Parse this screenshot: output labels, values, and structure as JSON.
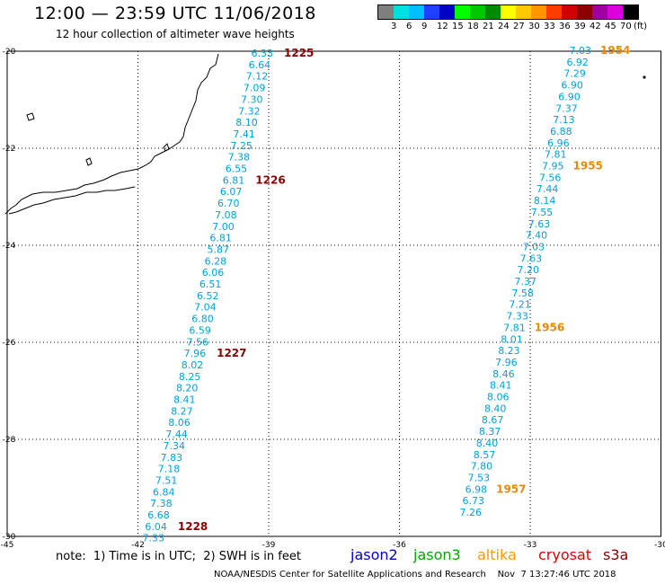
{
  "header": {
    "title": "12:00 — 23:59 UTC 11/06/2018",
    "subtitle": "12 hour collection of altimeter wave heights"
  },
  "legend": {
    "unit": "(ft)",
    "levels": [
      {
        "label": "",
        "color": "#7f7f7f"
      },
      {
        "label": "3",
        "color": "#00e0e0"
      },
      {
        "label": "6",
        "color": "#00bfff"
      },
      {
        "label": "9",
        "color": "#1f3fff"
      },
      {
        "label": "12",
        "color": "#0000c8"
      },
      {
        "label": "15",
        "color": "#00ff00"
      },
      {
        "label": "18",
        "color": "#00c800"
      },
      {
        "label": "21",
        "color": "#008a00"
      },
      {
        "label": "24",
        "color": "#ffff00"
      },
      {
        "label": "27",
        "color": "#ffc800"
      },
      {
        "label": "30",
        "color": "#ff9600"
      },
      {
        "label": "33",
        "color": "#ff3c00"
      },
      {
        "label": "36",
        "color": "#d20000"
      },
      {
        "label": "39",
        "color": "#8c0000"
      },
      {
        "label": "42",
        "color": "#a000a0"
      },
      {
        "label": "45",
        "color": "#dc00dc"
      },
      {
        "label": "70",
        "color": "#000000"
      }
    ]
  },
  "axes": {
    "lon_ticks": [
      "-45",
      "-42",
      "-39",
      "-36",
      "-33",
      "-30"
    ],
    "lat_ticks": [
      "-20",
      "-22",
      "-24",
      "-26",
      "-28",
      "-30"
    ]
  },
  "passes": {
    "west": {
      "color": "#00a0e0",
      "values": [
        "6.33",
        "6.64",
        "7.12",
        "7.09",
        "7.30",
        "7.32",
        "8.10",
        "7.41",
        "7.25",
        "7.38",
        "6.55",
        "6.81",
        "6.07",
        "6.70",
        "7.08",
        "7.00",
        "6.81",
        "5.87",
        "6.28",
        "6.06",
        "6.51",
        "6.52",
        "7.04",
        "6.80",
        "6.59",
        "7.56",
        "7.96",
        "8.02",
        "8.25",
        "8.20",
        "8.41",
        "8.27",
        "8.06",
        "7.44",
        "7.34",
        "7.83",
        "7.18",
        "7.51",
        "6.84",
        "7.38",
        "6.68",
        "6.04",
        "7.33"
      ],
      "times": [
        {
          "label": "1225",
          "index": 0
        },
        {
          "label": "1226",
          "index": 11
        },
        {
          "label": "1227",
          "index": 26
        },
        {
          "label": "1228",
          "index": 41
        }
      ],
      "time_color": "#8b0000"
    },
    "east": {
      "color": "#00a0e0",
      "values": [
        "7.03",
        "6.92",
        "7.29",
        "6.90",
        "6.90",
        "7.37",
        "7.13",
        "6.88",
        "6.96",
        "7.81",
        "7.95",
        "7.56",
        "7.44",
        "8.14",
        "7.55",
        "7.63",
        "7.40",
        "7.03",
        "7.63",
        "7.20",
        "7.37",
        "7.58",
        "7.21",
        "7.33",
        "7.81",
        "8.01",
        "8.23",
        "7.96",
        "8.46",
        "8.41",
        "8.06",
        "8.40",
        "8.67",
        "8.37",
        "8.40",
        "8.57",
        "7.80",
        "7.53",
        "6.98",
        "6.73",
        "7.26"
      ],
      "times": [
        {
          "label": "1954",
          "index": 0
        },
        {
          "label": "1955",
          "index": 10
        },
        {
          "label": "1956",
          "index": 24
        },
        {
          "label": "1957",
          "index": 38
        }
      ],
      "time_color": "#ee8800"
    }
  },
  "footer": {
    "note": "note:  1) Time is in UTC;  2) SWH is in feet",
    "satellites": [
      {
        "name": "jason2",
        "color": "#0000cc"
      },
      {
        "name": "jason3",
        "color": "#00aa00"
      },
      {
        "name": "altika",
        "color": "#ff9900"
      },
      {
        "name": "cryosat",
        "color": "#dd0000"
      },
      {
        "name": "s3a",
        "color": "#880000"
      }
    ],
    "credit": "NOAA/NESDIS Center for Satellite Applications and Research    Nov  7 13:27:46 UTC 2018"
  }
}
